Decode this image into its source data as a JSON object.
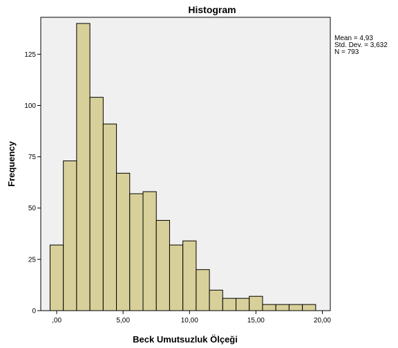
{
  "chart_data": {
    "type": "bar",
    "title": "Histogram",
    "xlabel": "Beck Umutsuzluk Ölçeği",
    "ylabel": "Frequency",
    "xlim": [
      -1.2,
      20.6
    ],
    "ylim": [
      0,
      143
    ],
    "bin_width": 1.0,
    "bins": [
      {
        "start": -0.5,
        "end": 0.5,
        "value": 32
      },
      {
        "start": 0.5,
        "end": 1.5,
        "value": 73
      },
      {
        "start": 1.5,
        "end": 2.5,
        "value": 140
      },
      {
        "start": 2.5,
        "end": 3.5,
        "value": 104
      },
      {
        "start": 3.5,
        "end": 4.5,
        "value": 91
      },
      {
        "start": 4.5,
        "end": 5.5,
        "value": 67
      },
      {
        "start": 5.5,
        "end": 6.5,
        "value": 57
      },
      {
        "start": 6.5,
        "end": 7.5,
        "value": 58
      },
      {
        "start": 7.5,
        "end": 8.5,
        "value": 44
      },
      {
        "start": 8.5,
        "end": 9.5,
        "value": 32
      },
      {
        "start": 9.5,
        "end": 10.5,
        "value": 34
      },
      {
        "start": 10.5,
        "end": 11.5,
        "value": 20
      },
      {
        "start": 11.5,
        "end": 12.5,
        "value": 10
      },
      {
        "start": 12.5,
        "end": 13.5,
        "value": 6
      },
      {
        "start": 13.5,
        "end": 14.5,
        "value": 6
      },
      {
        "start": 14.5,
        "end": 15.5,
        "value": 7
      },
      {
        "start": 15.5,
        "end": 16.5,
        "value": 3
      },
      {
        "start": 16.5,
        "end": 17.5,
        "value": 3
      },
      {
        "start": 17.5,
        "end": 18.5,
        "value": 3
      },
      {
        "start": 18.5,
        "end": 19.5,
        "value": 3
      }
    ],
    "x_ticks": [
      {
        "value": 0,
        "label": ",00"
      },
      {
        "value": 5,
        "label": "5,00"
      },
      {
        "value": 10,
        "label": "10,00"
      },
      {
        "value": 15,
        "label": "15,00"
      },
      {
        "value": 20,
        "label": "20,00"
      }
    ],
    "y_ticks": [
      {
        "value": 0,
        "label": "0"
      },
      {
        "value": 25,
        "label": "25"
      },
      {
        "value": 50,
        "label": "50"
      },
      {
        "value": 75,
        "label": "75"
      },
      {
        "value": 100,
        "label": "100"
      },
      {
        "value": 125,
        "label": "125"
      }
    ],
    "stats_lines": [
      "Mean = 4,93",
      "Std. Dev. = 3,632",
      "N = 793"
    ],
    "legend_placement": "right",
    "grid": false,
    "colors": {
      "bar_fill": "#d8d09a",
      "bar_stroke": "#000000",
      "plot_background": "#f0f0f0"
    }
  }
}
